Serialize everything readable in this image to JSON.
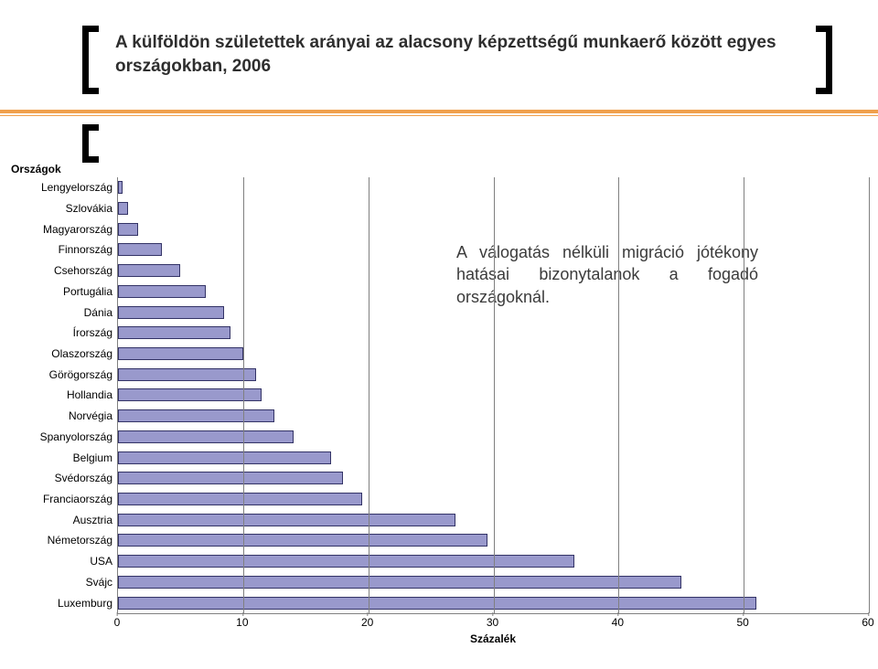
{
  "title": "A külföldön születettek arányai az alacsony képzettségű munkaerő között egyes országokban, 2006",
  "annotation": "A válogatás nélküli migráció jótékony hatásai bizonytalanok a fogadó országoknál.",
  "y_axis_title": "Országok",
  "x_axis_title": "Százalék",
  "chart": {
    "type": "bar-horizontal",
    "xlim": [
      0,
      60
    ],
    "xtick_step": 10,
    "xticks": [
      0,
      10,
      20,
      30,
      40,
      50,
      60
    ],
    "bar_fill": "#9999cc",
    "bar_border": "#333366",
    "grid_color": "#808080",
    "background_color": "#ffffff",
    "label_fontsize": 12,
    "categories": [
      "Lengyelország",
      "Szlovákia",
      "Magyarország",
      "Finnország",
      "Csehország",
      "Portugália",
      "Dánia",
      "Írország",
      "Olaszország",
      "Görögország",
      "Hollandia",
      "Norvégia",
      "Spanyolország",
      "Belgium",
      "Svédország",
      "Franciaország",
      "Ausztria",
      "Németország",
      "USA",
      "Svájc",
      "Luxemburg"
    ],
    "values": [
      0.4,
      0.8,
      1.6,
      3.5,
      5.0,
      7.0,
      8.5,
      9.0,
      10.0,
      11.0,
      11.5,
      12.5,
      14.0,
      17.0,
      18.0,
      19.5,
      27.0,
      29.5,
      36.5,
      45.0,
      51.0
    ]
  },
  "colors": {
    "accent_orange": "#f0a04c",
    "text": "#2e2e2e"
  }
}
